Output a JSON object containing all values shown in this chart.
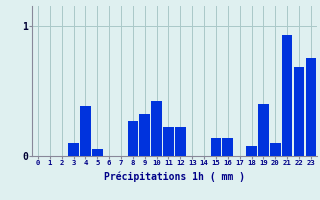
{
  "categories": [
    0,
    1,
    2,
    3,
    4,
    5,
    6,
    7,
    8,
    9,
    10,
    11,
    12,
    13,
    14,
    15,
    16,
    17,
    18,
    19,
    20,
    21,
    22,
    23
  ],
  "values": [
    0,
    0,
    0,
    0.1,
    0.38,
    0.05,
    0,
    0,
    0.27,
    0.32,
    0.42,
    0.22,
    0.22,
    0,
    0,
    0.14,
    0.14,
    0,
    0.08,
    0.4,
    0.1,
    0.93,
    0.68,
    0.75
  ],
  "bar_color": "#0033dd",
  "background_color": "#dff0f0",
  "grid_color": "#aac8c8",
  "axis_color": "#888899",
  "xlabel": "Précipitations 1h ( mm )",
  "ylim": [
    0,
    1.15
  ],
  "yticks": [
    0,
    1
  ],
  "xlabel_fontsize": 7,
  "ytick_fontsize": 7,
  "xtick_fontsize": 5.2
}
